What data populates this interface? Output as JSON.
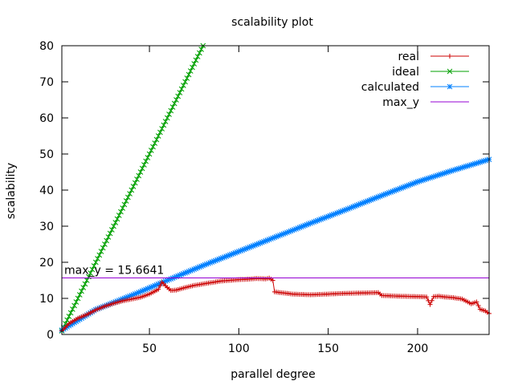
{
  "chart_data": {
    "type": "line",
    "title": "scalability plot",
    "xlabel": "parallel degree",
    "ylabel": "scalability",
    "xlim": [
      1,
      240
    ],
    "ylim": [
      0,
      80
    ],
    "xticks": [
      50,
      100,
      150,
      200
    ],
    "yticks": [
      0,
      10,
      20,
      30,
      40,
      50,
      60,
      70,
      80
    ],
    "grid": false,
    "legend_position": "top-right",
    "annotation": "max_y = 15.6641",
    "series": [
      {
        "name": "real",
        "color": "#cc0000",
        "marker": "plus",
        "x": [
          1,
          5,
          10,
          15,
          20,
          25,
          30,
          35,
          40,
          45,
          50,
          55,
          57,
          60,
          62,
          65,
          70,
          75,
          80,
          85,
          90,
          95,
          100,
          105,
          110,
          115,
          117,
          119,
          120,
          125,
          130,
          140,
          150,
          160,
          170,
          178,
          180,
          190,
          200,
          205,
          207,
          209,
          212,
          215,
          220,
          225,
          230,
          233,
          235,
          238,
          240
        ],
        "y": [
          1,
          3,
          4.5,
          5.5,
          6.8,
          7.8,
          8.6,
          9.3,
          9.8,
          10.3,
          11.2,
          12.5,
          14.5,
          13,
          12.2,
          12.3,
          13,
          13.6,
          14,
          14.4,
          14.8,
          15,
          15.2,
          15.3,
          15.5,
          15.4,
          15.6,
          15,
          11.8,
          11.5,
          11.2,
          11,
          11.2,
          11.4,
          11.5,
          11.6,
          10.8,
          10.6,
          10.5,
          10.4,
          8.3,
          10.5,
          10.6,
          10.4,
          10.2,
          9.8,
          8.5,
          9,
          7,
          6.5,
          5.8
        ]
      },
      {
        "name": "ideal",
        "color": "#00a000",
        "marker": "x",
        "x": [
          1,
          80
        ],
        "y": [
          1,
          80
        ]
      },
      {
        "name": "calculated",
        "color": "#0080ff",
        "marker": "star",
        "x": [
          1,
          20,
          40,
          60,
          80,
          100,
          120,
          140,
          160,
          180,
          200,
          220,
          240
        ],
        "y": [
          1.2,
          6.9,
          10.8,
          15.0,
          19.1,
          23.0,
          26.9,
          30.8,
          34.6,
          38.5,
          42.3,
          45.5,
          48.5
        ]
      },
      {
        "name": "max_y",
        "color": "#9400d3",
        "marker": "none",
        "x": [
          1,
          240
        ],
        "y": [
          15.6641,
          15.6641
        ]
      }
    ]
  }
}
